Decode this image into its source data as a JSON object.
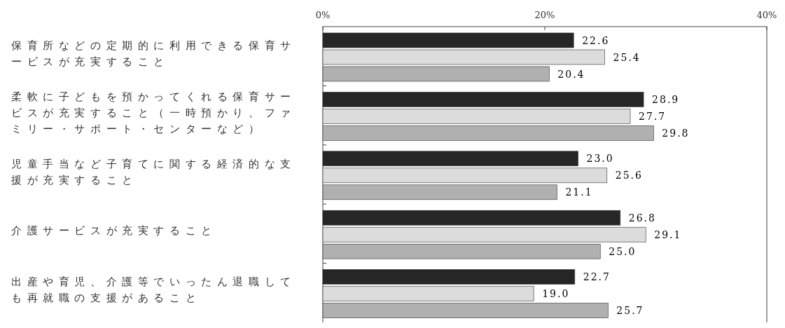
{
  "chart_data": {
    "type": "bar",
    "orientation": "horizontal",
    "categories": [
      "保育所などの定期的に利用できる保育サービスが充実すること",
      "柔軟に子どもを預かってくれる保育サービスが充実すること（一時預かり、ファミリー・サポート・センターなど）",
      "児童手当など子育てに関する経済的な支援が充実すること",
      "介護サービスが充実すること",
      "出産や育児、介護等でいったん退職しても再就職の支援があること"
    ],
    "series": [
      {
        "color": "#262626",
        "values": [
          22.6,
          28.9,
          23.0,
          26.8,
          22.7
        ],
        "value_labels": [
          "22.6",
          "28.9",
          "23.0",
          "26.8",
          "22.7"
        ]
      },
      {
        "color": "#dcdcdc",
        "values": [
          25.4,
          27.7,
          25.6,
          29.1,
          19.0
        ],
        "value_labels": [
          "25.4",
          "27.7",
          "25.6",
          "29.1",
          "19.0"
        ]
      },
      {
        "color": "#b0b0b0",
        "values": [
          20.4,
          29.8,
          21.1,
          25.0,
          25.7
        ],
        "value_labels": [
          "20.4",
          "29.8",
          "21.1",
          "25.0",
          "25.7"
        ]
      }
    ],
    "xlim": [
      0,
      40
    ],
    "xticks": [
      {
        "value": 0,
        "label": "0%"
      },
      {
        "value": 20,
        "label": "20%"
      },
      {
        "value": 40,
        "label": "40%"
      }
    ],
    "grid": false
  }
}
